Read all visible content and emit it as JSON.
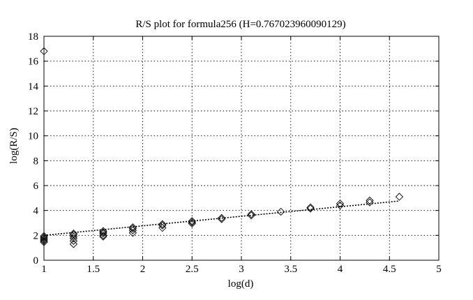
{
  "chart_data": {
    "type": "scatter",
    "title": "R/S plot for formula256 (H=0.767023960090129)",
    "xlabel": "log(d)",
    "ylabel": "log(R/S)",
    "xlim": [
      1,
      5
    ],
    "ylim": [
      0,
      18
    ],
    "xticks": [
      1,
      1.5,
      2,
      2.5,
      3,
      3.5,
      4,
      4.5,
      5
    ],
    "yticks": [
      0,
      2,
      4,
      6,
      8,
      10,
      12,
      14,
      16,
      18
    ],
    "xtick_labels": [
      "1",
      "1.5",
      "2",
      "2.5",
      "3",
      "3.5",
      "4",
      "4.5",
      "5"
    ],
    "ytick_labels": [
      "0",
      "2",
      "4",
      "6",
      "8",
      "10",
      "12",
      "14",
      "16",
      "18"
    ],
    "grid": true,
    "marker": "diamond",
    "series": [
      {
        "points": [
          [
            1.0,
            16.8
          ],
          [
            1.0,
            1.95
          ],
          [
            1.0,
            1.85
          ],
          [
            1.0,
            1.75
          ],
          [
            1.0,
            1.65
          ],
          [
            1.0,
            1.55
          ],
          [
            1.0,
            1.45
          ],
          [
            1.3,
            2.15
          ],
          [
            1.3,
            2.05
          ],
          [
            1.3,
            1.9
          ],
          [
            1.3,
            1.75
          ],
          [
            1.3,
            1.55
          ],
          [
            1.3,
            1.3
          ],
          [
            1.6,
            2.35
          ],
          [
            1.6,
            2.25
          ],
          [
            1.6,
            2.15
          ],
          [
            1.6,
            2.0
          ],
          [
            1.6,
            1.9
          ],
          [
            1.9,
            2.65
          ],
          [
            1.9,
            2.55
          ],
          [
            1.9,
            2.4
          ],
          [
            1.9,
            2.2
          ],
          [
            2.2,
            2.9
          ],
          [
            2.2,
            2.8
          ],
          [
            2.2,
            2.6
          ],
          [
            2.5,
            3.15
          ],
          [
            2.5,
            3.05
          ],
          [
            2.5,
            2.95
          ],
          [
            2.8,
            3.4
          ],
          [
            2.8,
            3.3
          ],
          [
            3.1,
            3.7
          ],
          [
            3.1,
            3.6
          ],
          [
            3.4,
            3.9
          ],
          [
            3.7,
            4.25
          ],
          [
            3.7,
            4.15
          ],
          [
            4.0,
            4.55
          ],
          [
            4.0,
            4.4
          ],
          [
            4.3,
            4.8
          ],
          [
            4.3,
            4.65
          ],
          [
            4.6,
            5.1
          ]
        ]
      }
    ],
    "fit_line": {
      "style": "dotted",
      "x": [
        1.0,
        4.6
      ],
      "y": [
        2.0,
        4.76
      ]
    }
  }
}
